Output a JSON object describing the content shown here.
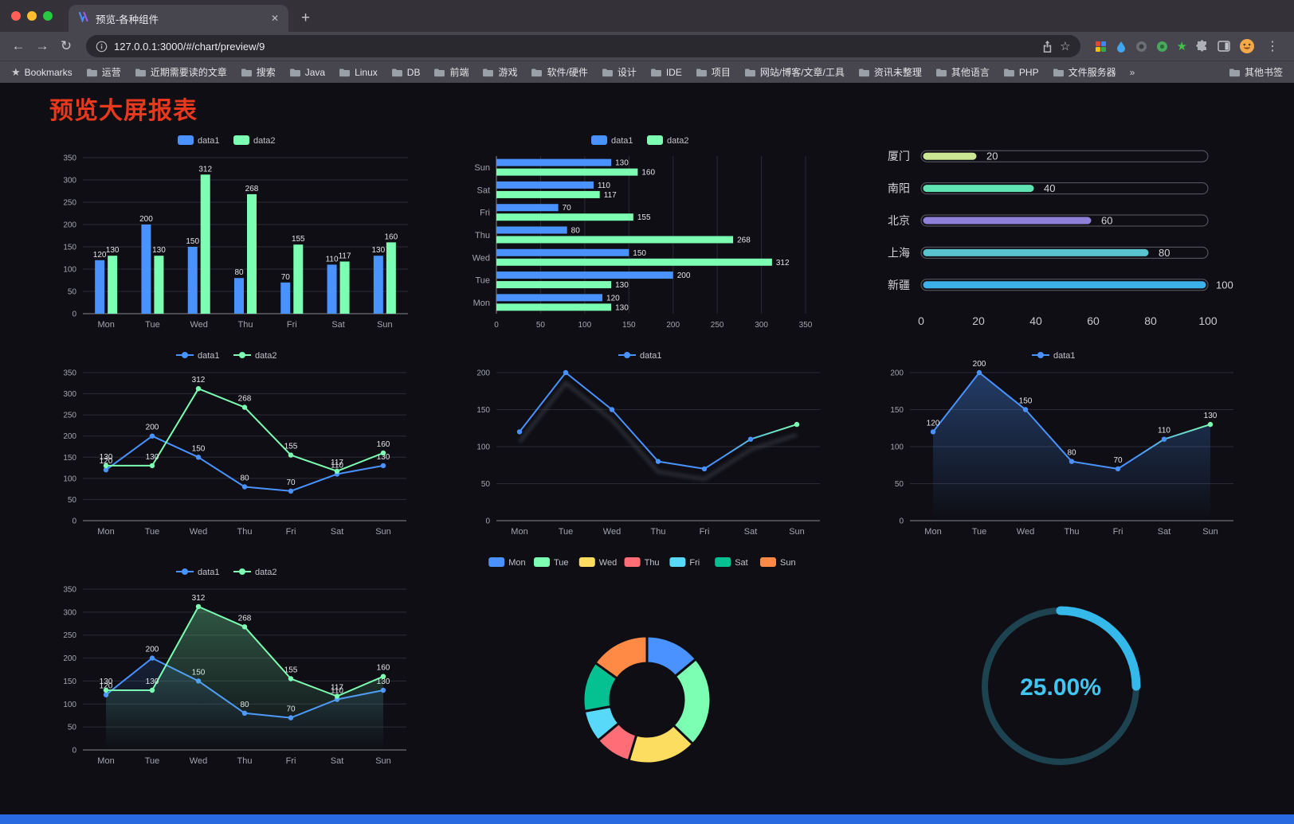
{
  "window": {
    "tab_title": "预览-各种组件",
    "url": "127.0.0.1:3000/#/chart/preview/9",
    "new_tab_label": "+",
    "tab_close_label": "✕"
  },
  "nav": {
    "back": "←",
    "forward": "→",
    "reload": "↻",
    "menu": "⋮",
    "bookmark_star": "☆"
  },
  "bookmarks": {
    "star_icon": "★",
    "label": "Bookmarks",
    "items": [
      "运营",
      "近期需要读的文章",
      "搜索",
      "Java",
      "Linux",
      "DB",
      "前端",
      "游戏",
      "软件/硬件",
      "设计",
      "IDE",
      "项目",
      "网站/博客/文章/工具",
      "资讯未整理",
      "其他语言",
      "PHP",
      "文件服务器"
    ],
    "overflow": "»",
    "other": "其他书签"
  },
  "page": {
    "title": "预览大屏报表",
    "title_color": "#e8381d",
    "accent_strip_color": "#2a6ae0"
  },
  "chart_data": [
    {
      "kind": "bar",
      "categories": [
        "Mon",
        "Tue",
        "Wed",
        "Thu",
        "Fri",
        "Sat",
        "Sun"
      ],
      "ymax": 350,
      "ystep": 50,
      "series": [
        {
          "name": "data1",
          "color": "#4992ff",
          "values": [
            120,
            200,
            150,
            80,
            70,
            110,
            130
          ]
        },
        {
          "name": "data2",
          "color": "#7cffb2",
          "values": [
            130,
            130,
            312,
            268,
            155,
            117,
            160
          ]
        }
      ]
    },
    {
      "kind": "hbar",
      "categories": [
        "Mon",
        "Tue",
        "Wed",
        "Thu",
        "Fri",
        "Sat",
        "Sun"
      ],
      "xmax": 350,
      "xstep": 50,
      "series": [
        {
          "name": "data1",
          "color": "#4992ff",
          "values": [
            120,
            200,
            150,
            80,
            70,
            110,
            130
          ]
        },
        {
          "name": "data2",
          "color": "#7cffb2",
          "values": [
            130,
            130,
            312,
            268,
            155,
            117,
            160
          ]
        }
      ]
    },
    {
      "kind": "capsule",
      "max": 100,
      "xticks": [
        0,
        20,
        40,
        60,
        80,
        100
      ],
      "rows": [
        {
          "label": "厦门",
          "value": 20,
          "color": "#cbe793"
        },
        {
          "label": "南阳",
          "value": 40,
          "color": "#5fe3b2"
        },
        {
          "label": "北京",
          "value": 60,
          "color": "#8f80da"
        },
        {
          "label": "上海",
          "value": 80,
          "color": "#59c4cf"
        },
        {
          "label": "新疆",
          "value": 100,
          "color": "#3cb1e9"
        }
      ]
    },
    {
      "kind": "line",
      "categories": [
        "Mon",
        "Tue",
        "Wed",
        "Thu",
        "Fri",
        "Sat",
        "Sun"
      ],
      "ymax": 350,
      "ystep": 50,
      "labels": true,
      "series": [
        {
          "name": "data1",
          "color": "#4992ff",
          "values": [
            120,
            200,
            150,
            80,
            70,
            110,
            130
          ]
        },
        {
          "name": "data2",
          "color": "#7cffb2",
          "values": [
            130,
            130,
            312,
            268,
            155,
            117,
            160
          ]
        }
      ]
    },
    {
      "kind": "line",
      "categories": [
        "Mon",
        "Tue",
        "Wed",
        "Thu",
        "Fri",
        "Sat",
        "Sun"
      ],
      "ymax": 200,
      "ystep": 50,
      "labels": false,
      "shadow": true,
      "series": [
        {
          "name": "data1",
          "color": "#4992ff",
          "gradient_end": "#7cffb2",
          "values": [
            120,
            200,
            150,
            80,
            70,
            110,
            130
          ]
        }
      ]
    },
    {
      "kind": "line",
      "categories": [
        "Mon",
        "Tue",
        "Wed",
        "Thu",
        "Fri",
        "Sat",
        "Sun"
      ],
      "ymax": 200,
      "ystep": 50,
      "labels": true,
      "series": [
        {
          "name": "data1",
          "color": "#4992ff",
          "gradient_end": "#7cffb2",
          "area": true,
          "area_opacity": 0.35,
          "values": [
            120,
            200,
            150,
            80,
            70,
            110,
            130
          ]
        }
      ]
    },
    {
      "kind": "line",
      "categories": [
        "Mon",
        "Tue",
        "Wed",
        "Thu",
        "Fri",
        "Sat",
        "Sun"
      ],
      "ymax": 350,
      "ystep": 50,
      "labels": true,
      "series": [
        {
          "name": "data1",
          "color": "#4992ff",
          "area": true,
          "area_opacity": 0.15,
          "values": [
            120,
            200,
            150,
            80,
            70,
            110,
            130
          ]
        },
        {
          "name": "data2",
          "color": "#7cffb2",
          "area": true,
          "area_opacity": 0.3,
          "values": [
            130,
            130,
            312,
            268,
            155,
            117,
            160
          ]
        }
      ]
    },
    {
      "kind": "donut",
      "legend": [
        {
          "name": "Mon",
          "color": "#4992ff"
        },
        {
          "name": "Tue",
          "color": "#7cffb2"
        },
        {
          "name": "Wed",
          "color": "#fddd60"
        },
        {
          "name": "Thu",
          "color": "#ff6e76"
        },
        {
          "name": "Fri",
          "color": "#58d9f9"
        },
        {
          "name": "Sat",
          "color": "#05c091"
        },
        {
          "name": "Sun",
          "color": "#ff8a45"
        }
      ],
      "values": [
        120,
        200,
        150,
        80,
        70,
        110,
        130
      ]
    },
    {
      "kind": "ring",
      "percent": 25,
      "label": "25.00%",
      "color": "#35b8ea",
      "track_color": "#1d4350",
      "text_color": "#41c6f4"
    }
  ]
}
